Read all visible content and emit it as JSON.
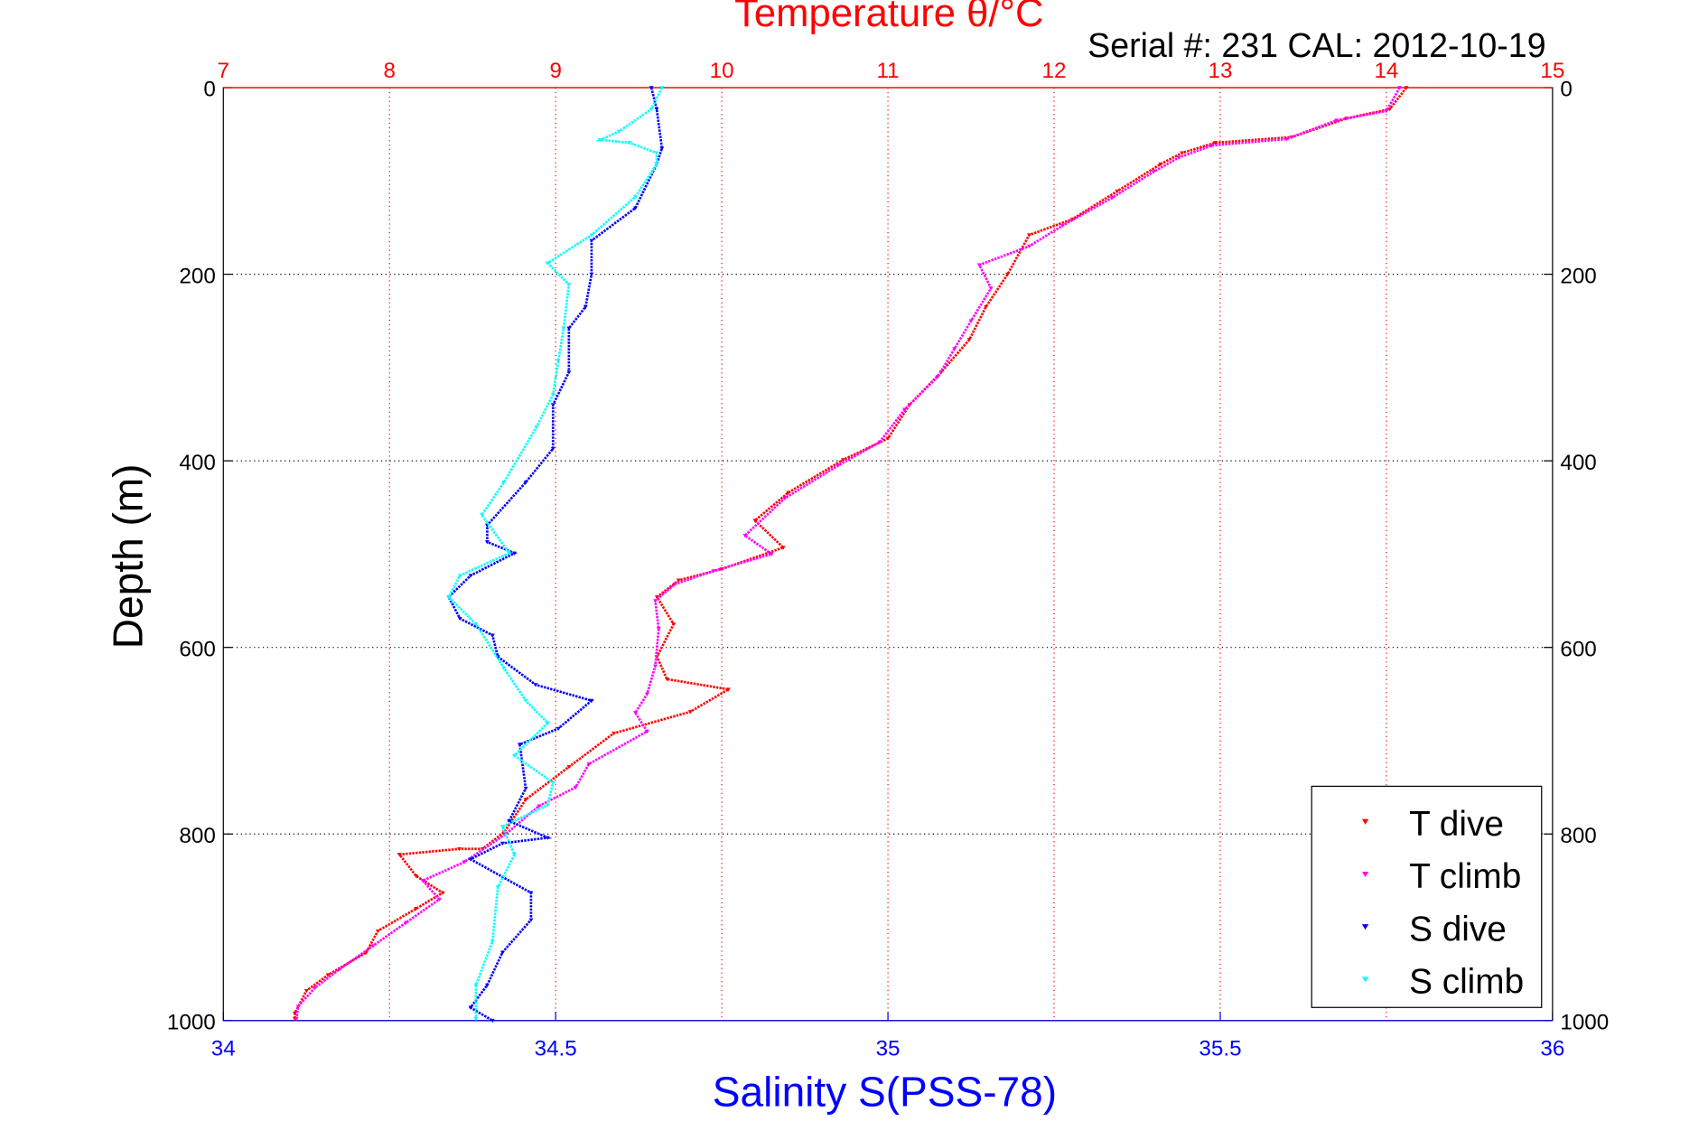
{
  "chart_data": {
    "type": "scatter",
    "title": "Temperature θ/°C",
    "subtitle": "Serial #: 231  CAL: 2012-10-19",
    "xlabel_top": "Temperature θ/°C",
    "xlabel": "Salinity S(PSS-78)",
    "ylabel": "Depth (m)",
    "temp_lim": [
      7,
      15
    ],
    "sal_lim": [
      34,
      36
    ],
    "ylim": [
      0,
      1000
    ],
    "y_reversed": true,
    "grid": true,
    "legend_position": "bottom-right",
    "temp_ticks": [
      "7",
      "8",
      "9",
      "10",
      "11",
      "12",
      "13",
      "14",
      "15"
    ],
    "sal_ticks": [
      "34",
      "34.5",
      "35",
      "35.5",
      "36"
    ],
    "depth_ticks": [
      "0",
      "200",
      "400",
      "600",
      "800",
      "1000"
    ],
    "colors": {
      "T dive": "#ff0000",
      "T climb": "#ff00ff",
      "S dive": "#0000ff",
      "S climb": "#00ffff",
      "temp_axis": "#ff0000",
      "sal_axis": "#0000ff"
    },
    "series": [
      {
        "name": "T dive",
        "axis": "temp",
        "points": [
          [
            14.12,
            0
          ],
          [
            14.02,
            23
          ],
          [
            13.76,
            33
          ],
          [
            13.43,
            53
          ],
          [
            12.97,
            59
          ],
          [
            12.77,
            70
          ],
          [
            12.64,
            82
          ],
          [
            12.38,
            111
          ],
          [
            12.11,
            141
          ],
          [
            11.85,
            158
          ],
          [
            11.72,
            200
          ],
          [
            11.59,
            235
          ],
          [
            11.49,
            270
          ],
          [
            11.32,
            305
          ],
          [
            11.13,
            340
          ],
          [
            11.0,
            376
          ],
          [
            10.73,
            399
          ],
          [
            10.4,
            434
          ],
          [
            10.2,
            464
          ],
          [
            10.37,
            493
          ],
          [
            10.0,
            516
          ],
          [
            9.74,
            528
          ],
          [
            9.61,
            546
          ],
          [
            9.71,
            575
          ],
          [
            9.61,
            610
          ],
          [
            9.67,
            634
          ],
          [
            10.04,
            645
          ],
          [
            9.81,
            669
          ],
          [
            9.35,
            692
          ],
          [
            9.08,
            728
          ],
          [
            8.82,
            763
          ],
          [
            8.69,
            798
          ],
          [
            8.56,
            816
          ],
          [
            8.42,
            816
          ],
          [
            8.06,
            822
          ],
          [
            8.16,
            845
          ],
          [
            8.32,
            863
          ],
          [
            8.16,
            880
          ],
          [
            7.93,
            904
          ],
          [
            7.86,
            927
          ],
          [
            7.63,
            951
          ],
          [
            7.5,
            968
          ],
          [
            7.43,
            992
          ],
          [
            7.43,
            998
          ]
        ]
      },
      {
        "name": "T climb",
        "axis": "temp",
        "points": [
          [
            14.08,
            0
          ],
          [
            14.0,
            25
          ],
          [
            13.7,
            35
          ],
          [
            13.4,
            55
          ],
          [
            12.95,
            62
          ],
          [
            12.75,
            75
          ],
          [
            12.6,
            90
          ],
          [
            12.35,
            118
          ],
          [
            12.05,
            148
          ],
          [
            11.85,
            170
          ],
          [
            11.55,
            190
          ],
          [
            11.62,
            215
          ],
          [
            11.5,
            250
          ],
          [
            11.4,
            280
          ],
          [
            11.3,
            310
          ],
          [
            11.1,
            345
          ],
          [
            10.95,
            380
          ],
          [
            10.7,
            405
          ],
          [
            10.38,
            440
          ],
          [
            10.14,
            480
          ],
          [
            10.3,
            500
          ],
          [
            9.95,
            518
          ],
          [
            9.72,
            532
          ],
          [
            9.6,
            550
          ],
          [
            9.62,
            580
          ],
          [
            9.6,
            620
          ],
          [
            9.55,
            650
          ],
          [
            9.48,
            670
          ],
          [
            9.55,
            690
          ],
          [
            9.2,
            725
          ],
          [
            9.12,
            750
          ],
          [
            8.9,
            770
          ],
          [
            8.7,
            800
          ],
          [
            8.45,
            830
          ],
          [
            8.2,
            850
          ],
          [
            8.3,
            870
          ],
          [
            8.1,
            895
          ],
          [
            7.9,
            920
          ],
          [
            7.7,
            945
          ],
          [
            7.55,
            965
          ],
          [
            7.45,
            985
          ],
          [
            7.44,
            998
          ]
        ]
      },
      {
        "name": "S dive",
        "axis": "sal",
        "points": [
          [
            34.644,
            0
          ],
          [
            34.652,
            23
          ],
          [
            34.66,
            65
          ],
          [
            34.652,
            82
          ],
          [
            34.62,
            129
          ],
          [
            34.554,
            164
          ],
          [
            34.554,
            200
          ],
          [
            34.545,
            235
          ],
          [
            34.52,
            258
          ],
          [
            34.52,
            305
          ],
          [
            34.496,
            340
          ],
          [
            34.496,
            387
          ],
          [
            34.455,
            423
          ],
          [
            34.397,
            469
          ],
          [
            34.397,
            487
          ],
          [
            34.438,
            499
          ],
          [
            34.372,
            523
          ],
          [
            34.339,
            546
          ],
          [
            34.356,
            569
          ],
          [
            34.405,
            587
          ],
          [
            34.413,
            610
          ],
          [
            34.47,
            640
          ],
          [
            34.554,
            657
          ],
          [
            34.504,
            687
          ],
          [
            34.446,
            704
          ],
          [
            34.455,
            751
          ],
          [
            34.43,
            786
          ],
          [
            34.488,
            804
          ],
          [
            34.42,
            810
          ],
          [
            34.372,
            827
          ],
          [
            34.463,
            863
          ],
          [
            34.463,
            892
          ],
          [
            34.42,
            927
          ],
          [
            34.397,
            962
          ],
          [
            34.372,
            986
          ],
          [
            34.405,
            1000
          ]
        ]
      },
      {
        "name": "S climb",
        "axis": "sal",
        "points": [
          [
            34.66,
            0
          ],
          [
            34.644,
            23
          ],
          [
            34.595,
            47
          ],
          [
            34.567,
            56
          ],
          [
            34.611,
            59
          ],
          [
            34.652,
            70
          ],
          [
            34.652,
            82
          ],
          [
            34.62,
            117
          ],
          [
            34.554,
            158
          ],
          [
            34.488,
            188
          ],
          [
            34.52,
            211
          ],
          [
            34.512,
            258
          ],
          [
            34.504,
            293
          ],
          [
            34.496,
            329
          ],
          [
            34.471,
            364
          ],
          [
            34.422,
            423
          ],
          [
            34.389,
            458
          ],
          [
            34.43,
            499
          ],
          [
            34.356,
            523
          ],
          [
            34.339,
            546
          ],
          [
            34.38,
            575
          ],
          [
            34.422,
            622
          ],
          [
            34.455,
            657
          ],
          [
            34.488,
            681
          ],
          [
            34.438,
            716
          ],
          [
            34.496,
            745
          ],
          [
            34.488,
            769
          ],
          [
            34.42,
            792
          ],
          [
            34.438,
            822
          ],
          [
            34.413,
            857
          ],
          [
            34.405,
            915
          ],
          [
            34.38,
            962
          ],
          [
            34.38,
            998
          ]
        ]
      }
    ]
  }
}
